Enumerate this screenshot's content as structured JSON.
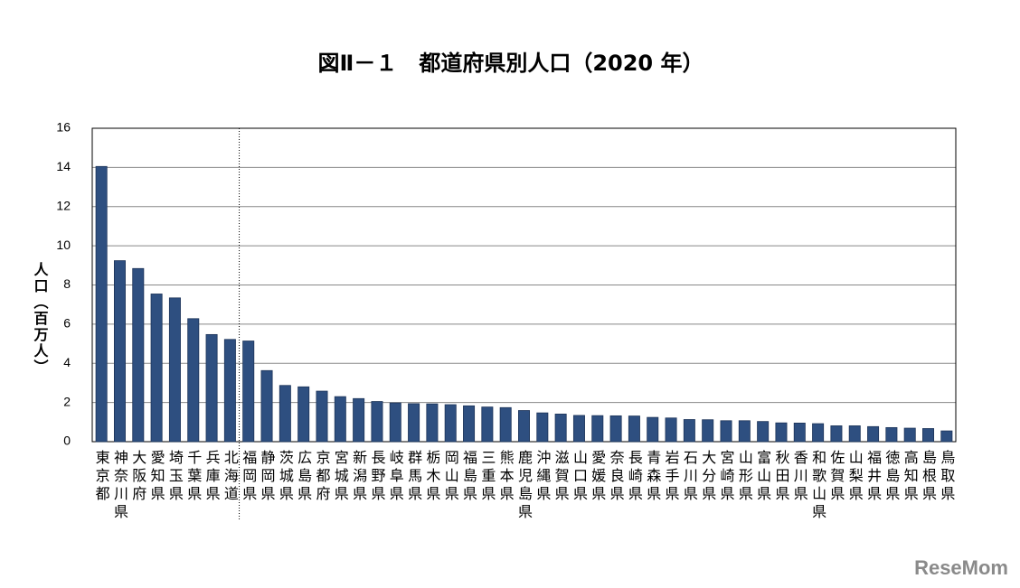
{
  "chart_data": {
    "type": "bar",
    "title": "図Ⅱ－１　都道府県別人口（2020 年）",
    "y_label": "人口（百万人）",
    "categories": [
      "東京都",
      "神奈川県",
      "大阪府",
      "愛知県",
      "埼玉県",
      "千葉県",
      "兵庫県",
      "北海道",
      "福岡県",
      "静岡県",
      "茨城県",
      "広島県",
      "京都府",
      "宮城県",
      "新潟県",
      "長野県",
      "岐阜県",
      "群馬県",
      "栃木県",
      "岡山県",
      "福島県",
      "三重県",
      "熊本県",
      "鹿児島県",
      "沖縄県",
      "滋賀県",
      "山口県",
      "愛媛県",
      "奈良県",
      "長崎県",
      "青森県",
      "岩手県",
      "石川県",
      "大分県",
      "宮崎県",
      "山形県",
      "富山県",
      "秋田県",
      "香川県",
      "和歌山県",
      "佐賀県",
      "山梨県",
      "福井県",
      "徳島県",
      "高知県",
      "島根県",
      "鳥取県"
    ],
    "values": [
      14.05,
      9.24,
      8.84,
      7.54,
      7.34,
      6.28,
      5.47,
      5.22,
      5.14,
      3.63,
      2.87,
      2.8,
      2.58,
      2.3,
      2.2,
      2.05,
      1.98,
      1.94,
      1.93,
      1.89,
      1.83,
      1.77,
      1.74,
      1.59,
      1.47,
      1.41,
      1.34,
      1.33,
      1.32,
      1.31,
      1.24,
      1.21,
      1.13,
      1.12,
      1.07,
      1.07,
      1.03,
      0.96,
      0.95,
      0.92,
      0.81,
      0.81,
      0.77,
      0.72,
      0.69,
      0.67,
      0.55
    ],
    "color": "#2e4f80",
    "ylim": [
      0,
      16
    ],
    "yticks": [
      0,
      2,
      4,
      6,
      8,
      10,
      12,
      14,
      16
    ],
    "grid": true
  },
  "watermark": "ReseMom"
}
